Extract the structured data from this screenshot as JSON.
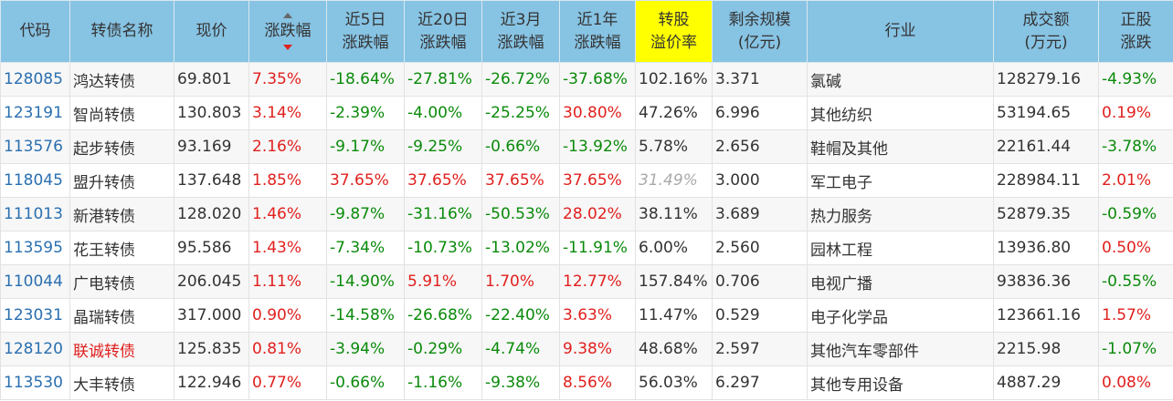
{
  "headers": [
    "代码",
    "转债名称",
    "现价",
    "涨跌幅",
    "近5日\n涨跌幅",
    "近20日\n涨跌幅",
    "近3月\n涨跌幅",
    "近1年\n涨跌幅",
    "转股\n溢价率",
    "剩余规模\n(亿元)",
    "行业",
    "成交额\n(万元)",
    "正股\n涨跌"
  ],
  "sort_column": "涨跌幅",
  "sort_direction": "desc",
  "colors": {
    "header": "#87c3e3",
    "highlight": "#ffff00",
    "up": "#e0201e",
    "down": "#0a8a0a",
    "code": "#2a6fb0"
  },
  "rows": [
    [
      "128085",
      "鸿达转债",
      "69.801",
      "7.35%",
      "-18.64%",
      "-27.81%",
      "-26.72%",
      "-37.68%",
      "102.16%",
      "3.371",
      "氯碱",
      "128279.16",
      "-4.93%"
    ],
    [
      "123191",
      "智尚转债",
      "130.803",
      "3.14%",
      "-2.39%",
      "-4.00%",
      "-25.25%",
      "30.80%",
      "47.26%",
      "6.996",
      "其他纺织",
      "53194.65",
      "0.19%"
    ],
    [
      "113576",
      "起步转债",
      "93.169",
      "2.16%",
      "-9.17%",
      "-9.25%",
      "-0.66%",
      "-13.92%",
      "5.78%",
      "2.656",
      "鞋帽及其他",
      "22161.44",
      "-3.78%"
    ],
    [
      "118045",
      "盟升转债",
      "137.648",
      "1.85%",
      "37.65%",
      "37.65%",
      "37.65%",
      "37.65%",
      "31.49%",
      "3.000",
      "军工电子",
      "228984.11",
      "2.01%"
    ],
    [
      "111013",
      "新港转债",
      "128.020",
      "1.46%",
      "-9.87%",
      "-31.16%",
      "-50.53%",
      "28.02%",
      "38.11%",
      "3.689",
      "热力服务",
      "52879.35",
      "-0.59%"
    ],
    [
      "113595",
      "花王转债",
      "95.586",
      "1.43%",
      "-7.34%",
      "-10.73%",
      "-13.02%",
      "-11.91%",
      "6.00%",
      "2.560",
      "园林工程",
      "13936.80",
      "0.50%"
    ],
    [
      "110044",
      "广电转债",
      "206.045",
      "1.11%",
      "-14.90%",
      "5.91%",
      "1.70%",
      "12.77%",
      "157.84%",
      "0.706",
      "电视广播",
      "93836.36",
      "-0.55%"
    ],
    [
      "123031",
      "晶瑞转债",
      "317.000",
      "0.90%",
      "-14.58%",
      "-26.68%",
      "-22.40%",
      "3.63%",
      "11.47%",
      "0.529",
      "电子化学品",
      "123661.16",
      "1.57%"
    ],
    [
      "128120",
      "联诚转债",
      "125.835",
      "0.81%",
      "-3.94%",
      "-0.29%",
      "-4.74%",
      "9.38%",
      "48.68%",
      "2.597",
      "其他汽车零部件",
      "2215.98",
      "-1.07%"
    ],
    [
      "113530",
      "大丰转债",
      "122.946",
      "0.77%",
      "-0.66%",
      "-1.16%",
      "-9.38%",
      "8.56%",
      "56.03%",
      "6.297",
      "其他专用设备",
      "4887.29",
      "0.08%"
    ]
  ],
  "red_name_rows": [
    8
  ],
  "gray_premium_rows": [
    3
  ]
}
